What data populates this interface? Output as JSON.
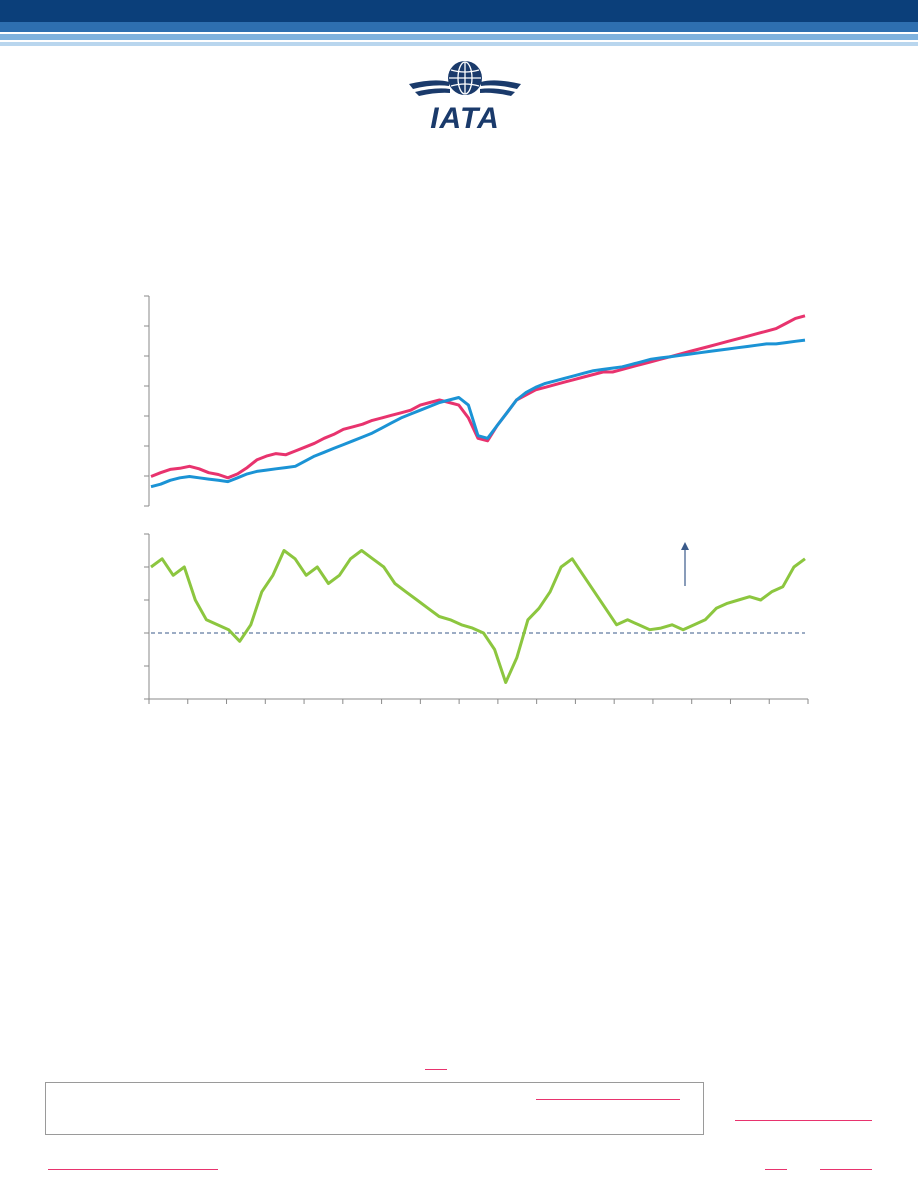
{
  "header": {
    "colors": [
      "#0b3f7a",
      "#2e6fb0",
      "#7fb2de",
      "#b9d6ee"
    ]
  },
  "logo": {
    "icon": "globe-wings-icon",
    "text": "IATA",
    "color": "#1a3a6b"
  },
  "chart_data": [
    {
      "type": "line",
      "panel": "top",
      "grid": false,
      "x_ticks": 17,
      "series": [
        {
          "color": "#e8336e",
          "values": [
            10,
            11.5,
            12.8,
            13.2,
            14,
            13,
            11.5,
            10.8,
            9.5,
            11,
            13.5,
            16.5,
            18,
            19,
            18.5,
            20,
            21.5,
            23,
            25,
            26.5,
            28.5,
            29.5,
            30.5,
            32,
            33,
            34,
            35,
            36,
            38,
            39,
            40,
            39,
            38,
            33,
            25,
            24,
            30,
            35,
            40,
            42,
            44,
            45,
            46,
            47,
            48,
            49,
            50,
            51,
            51,
            52,
            53,
            54,
            55,
            56,
            57,
            58,
            59,
            60,
            61,
            62,
            63,
            64,
            65,
            66,
            67,
            68,
            70,
            72,
            73
          ]
        },
        {
          "color": "#1b93d5",
          "values": [
            6,
            7,
            8.5,
            9.5,
            10,
            9.5,
            9,
            8.5,
            8,
            9.5,
            11,
            12,
            12.5,
            13,
            13.5,
            14,
            16,
            18,
            19.5,
            21,
            22.5,
            24,
            25.5,
            27,
            29,
            31,
            33,
            34.5,
            36,
            37.5,
            39,
            40,
            41,
            38,
            26,
            25,
            30,
            35,
            40,
            43,
            45,
            46.5,
            47.5,
            48.5,
            49.5,
            50.5,
            51.5,
            52,
            52.5,
            53,
            54,
            55,
            56,
            56.5,
            57,
            57.5,
            58,
            58.5,
            59,
            59.5,
            60,
            60.5,
            61,
            61.5,
            62,
            62,
            62.5,
            63,
            63.5
          ]
        }
      ]
    },
    {
      "type": "line",
      "panel": "bottom",
      "grid": false,
      "reference_line": 0,
      "series": [
        {
          "color": "#8cc63f",
          "values": [
            4,
            4.5,
            3.5,
            4,
            2,
            0.8,
            0.5,
            0.2,
            -0.5,
            0.5,
            2.5,
            3.5,
            5,
            4.5,
            3.5,
            4,
            3,
            3.5,
            4.5,
            5,
            4.5,
            4,
            3,
            2.5,
            2,
            1.5,
            1,
            0.8,
            0.5,
            0.3,
            0,
            -1,
            -3,
            -1.5,
            0.8,
            1.5,
            2.5,
            4,
            4.5,
            3.5,
            2.5,
            1.5,
            0.5,
            0.8,
            0.5,
            0.2,
            0.3,
            0.5,
            0.2,
            0.5,
            0.8,
            1.5,
            1.8,
            2,
            2.2,
            2,
            2.5,
            2.8,
            4,
            4.5
          ]
        }
      ],
      "annotation": "arrow"
    }
  ],
  "footer": {
    "note_box": true
  }
}
